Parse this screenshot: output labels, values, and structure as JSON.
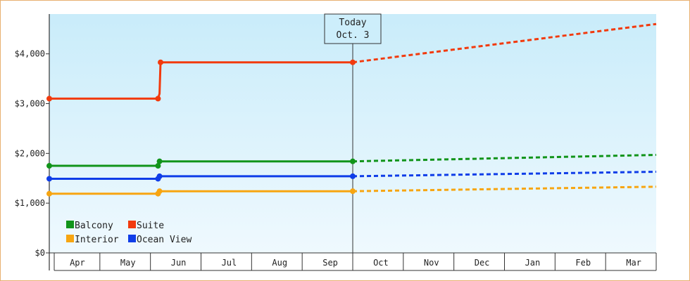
{
  "chart_data": {
    "type": "line",
    "title": "",
    "xlabel": "",
    "ylabel": "",
    "categories": [
      "Apr",
      "May",
      "Jun",
      "Jul",
      "Aug",
      "Sep",
      "Oct",
      "Nov",
      "Dec",
      "Jan",
      "Feb",
      "Mar"
    ],
    "ylim": [
      0,
      4800
    ],
    "yticks": [
      0,
      1000,
      2000,
      3000,
      4000
    ],
    "ytick_labels": [
      "$0",
      "$1,000",
      "$2,000",
      "$3,000",
      "$4,000"
    ],
    "grid": false,
    "legend": "bottom-left",
    "today": {
      "label": "Today",
      "date": "Oct. 3",
      "x": 6.0
    },
    "series": [
      {
        "name": "Balcony",
        "color": "#11941a",
        "actual": [
          [
            0.0,
            1750
          ],
          [
            2.15,
            1750
          ],
          [
            2.15,
            1760
          ],
          [
            2.18,
            1840
          ],
          [
            6.0,
            1840
          ]
        ],
        "markers": [
          [
            0.0,
            1750
          ],
          [
            2.15,
            1750
          ],
          [
            2.18,
            1840
          ],
          [
            6.0,
            1840
          ]
        ],
        "forecast": [
          [
            6.0,
            1840
          ],
          [
            12.0,
            1970
          ]
        ]
      },
      {
        "name": "Suite",
        "color": "#f23a0d",
        "actual": [
          [
            0.0,
            3100
          ],
          [
            2.15,
            3100
          ],
          [
            2.18,
            3200
          ],
          [
            2.2,
            3830
          ],
          [
            6.0,
            3830
          ]
        ],
        "markers": [
          [
            0.0,
            3100
          ],
          [
            2.15,
            3100
          ],
          [
            2.2,
            3830
          ],
          [
            6.0,
            3830
          ]
        ],
        "forecast": [
          [
            6.0,
            3830
          ],
          [
            12.0,
            4600
          ]
        ]
      },
      {
        "name": "Interior",
        "color": "#f7a511",
        "actual": [
          [
            0.0,
            1190
          ],
          [
            2.15,
            1190
          ],
          [
            2.15,
            1210
          ],
          [
            2.18,
            1240
          ],
          [
            6.0,
            1240
          ]
        ],
        "markers": [
          [
            0.0,
            1190
          ],
          [
            2.15,
            1190
          ],
          [
            2.18,
            1240
          ],
          [
            6.0,
            1240
          ]
        ],
        "forecast": [
          [
            6.0,
            1240
          ],
          [
            12.0,
            1330
          ]
        ]
      },
      {
        "name": "Ocean View",
        "color": "#0f3de8",
        "actual": [
          [
            0.0,
            1490
          ],
          [
            2.15,
            1490
          ],
          [
            2.15,
            1500
          ],
          [
            2.18,
            1540
          ],
          [
            6.0,
            1540
          ]
        ],
        "markers": [
          [
            0.0,
            1490
          ],
          [
            2.15,
            1490
          ],
          [
            2.18,
            1540
          ],
          [
            6.0,
            1540
          ]
        ],
        "forecast": [
          [
            6.0,
            1540
          ],
          [
            12.0,
            1630
          ]
        ]
      }
    ]
  }
}
